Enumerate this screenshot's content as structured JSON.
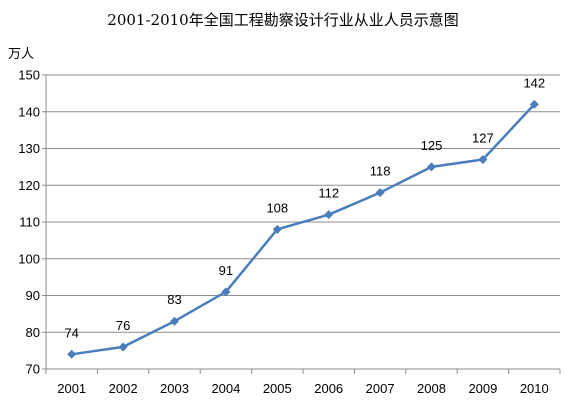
{
  "chart_data": {
    "type": "line",
    "title": "2001-2010年全国工程勘察设计行业从业人员示意图",
    "ylabel": "万人",
    "xlabel": "",
    "categories": [
      "2001",
      "2002",
      "2003",
      "2004",
      "2005",
      "2006",
      "2007",
      "2008",
      "2009",
      "2010"
    ],
    "series": [
      {
        "values": [
          74,
          76,
          83,
          91,
          108,
          112,
          118,
          125,
          127,
          142
        ]
      }
    ],
    "ylim": [
      70,
      150
    ],
    "yticks": [
      70,
      80,
      90,
      100,
      110,
      120,
      130,
      140,
      150
    ],
    "grid": true,
    "legend": "none",
    "line_color": "#4a7ebb",
    "marker": "diamond",
    "data_labels": true
  }
}
